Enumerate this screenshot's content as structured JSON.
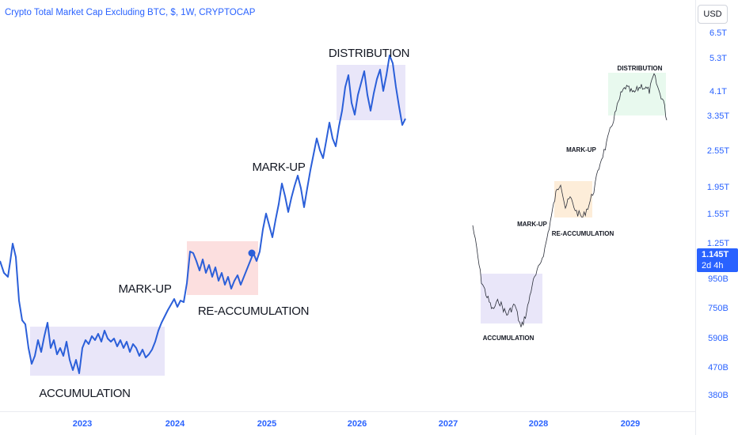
{
  "header": {
    "title": "Crypto Total Market Cap Excluding BTC, $, 1W, CRYPTOCAP",
    "currency": "USD"
  },
  "price_badge": {
    "value": "1.145T",
    "countdown": "2d 4h"
  },
  "colors": {
    "line": "#2b5fd9",
    "axis_text": "#2962ff",
    "zone_purple": "#e3e0f7",
    "zone_pink": "#fbd7d7",
    "zone_orange": "#fde8cf",
    "zone_green": "#e2f7ea",
    "text": "#131722"
  },
  "chart_data": {
    "type": "line",
    "title": "Crypto Total Market Cap Excluding BTC, $, 1W, CRYPTOCAP",
    "y_scale": "log",
    "price_ticks": [
      "6.5T",
      "5.3T",
      "4.1T",
      "3.35T",
      "2.55T",
      "1.95T",
      "1.55T",
      "1.25T",
      "950B",
      "750B",
      "590B",
      "470B",
      "380B"
    ],
    "time_ticks": [
      "2023",
      "2024",
      "2025",
      "2026",
      "2027",
      "2028",
      "2029"
    ],
    "current_value": "1.145T",
    "main_projection": {
      "labels": [
        "ACCUMULATION",
        "MARK-UP",
        "RE-ACCUMULATION",
        "MARK-UP",
        "DISTRIBUTION"
      ]
    },
    "reference_fractal": {
      "labels": [
        "ACCUMULATION",
        "MARK-UP",
        "RE-ACCUMULATION",
        "MARK-UP",
        "DISTRIBUTION"
      ]
    }
  }
}
